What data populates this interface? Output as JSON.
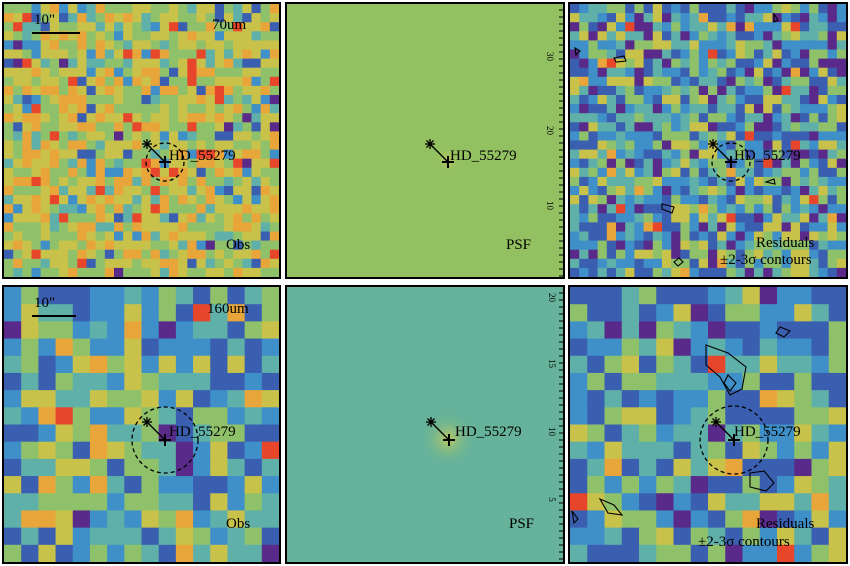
{
  "figure": {
    "colors": {
      "colormap": [
        "#5a2a8a",
        "#3a5fb0",
        "#3f8fc8",
        "#5fb0a8",
        "#8fc06a",
        "#c8c24a",
        "#e8a63a",
        "#e8462a"
      ],
      "psf_flat_70um": "#93c060",
      "psf_flat_160um": "#66b29a",
      "psf_core": "#c0cc5a",
      "contour": "#000000",
      "marker": "#000000"
    },
    "panels": [
      {
        "id": "obs-70",
        "band": "70um",
        "scale_label": "10\"",
        "corner_label": "Obs",
        "star_label": "HD_55279",
        "kind": "obs"
      },
      {
        "id": "psf-70",
        "band": "",
        "scale_label": "",
        "corner_label": "PSF",
        "star_label": "HD_55279",
        "kind": "psf",
        "axis_ticks": [
          "30",
          "20",
          "10"
        ]
      },
      {
        "id": "res-70",
        "band": "",
        "scale_label": "",
        "corner_label": "Residuals",
        "corner_label2": "±2-3σ contours",
        "star_label": "HD_55279",
        "kind": "res"
      },
      {
        "id": "obs-160",
        "band": "160um",
        "scale_label": "10\"",
        "corner_label": "Obs",
        "star_label": "HD_55279",
        "kind": "obs"
      },
      {
        "id": "psf-160",
        "band": "",
        "scale_label": "",
        "corner_label": "PSF",
        "star_label": "HD_55279",
        "kind": "psf",
        "axis_ticks": [
          "20",
          "15",
          "10",
          "5"
        ]
      },
      {
        "id": "res-160",
        "band": "",
        "scale_label": "",
        "corner_label": "Residuals",
        "corner_label2": "±2-3σ contours",
        "star_label": "HD_55279",
        "kind": "res"
      }
    ]
  }
}
